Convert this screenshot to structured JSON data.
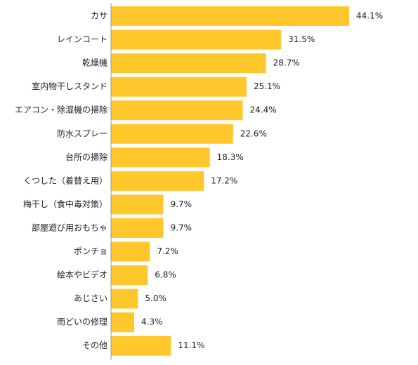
{
  "chart_data": {
    "type": "bar",
    "orientation": "horizontal",
    "title": "",
    "xlabel": "",
    "ylabel": "",
    "xlim": [
      0,
      50
    ],
    "grid": false,
    "legend": "none",
    "bar_color": "#FFC72C",
    "axis_color": "#9a9a9a",
    "categories": [
      "カサ",
      "レインコート",
      "乾燥機",
      "室内物干しスタンド",
      "エアコン・除湿機の掃除",
      "防水スプレー",
      "台所の掃除",
      "くつした（着替え用）",
      "梅干し（食中毒対策）",
      "部屋遊び用おもちゃ",
      "ポンチョ",
      "絵本やビデオ",
      "あじさい",
      "雨どいの修理",
      "その他"
    ],
    "values": [
      44.1,
      31.5,
      28.7,
      25.1,
      24.4,
      22.6,
      18.3,
      17.2,
      9.7,
      9.7,
      7.2,
      6.8,
      5.0,
      4.3,
      11.1
    ],
    "value_labels": [
      "44.1%",
      "31.5%",
      "28.7%",
      "25.1%",
      "24.4%",
      "22.6%",
      "18.3%",
      "17.2%",
      "9.7%",
      "9.7%",
      "7.2%",
      "6.8%",
      "5.0%",
      "4.3%",
      "11.1%"
    ]
  }
}
